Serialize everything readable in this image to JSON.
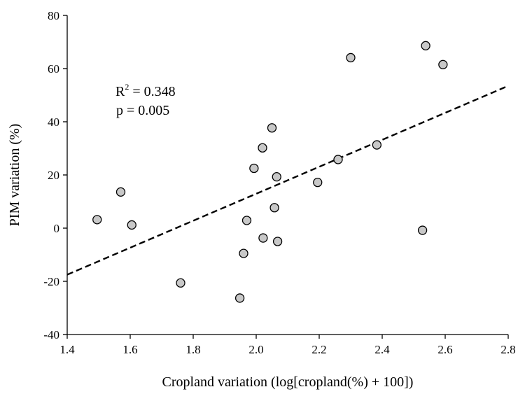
{
  "chart_data": {
    "type": "scatter",
    "title": "",
    "xlabel": "Cropland variation (log[cropland(%) + 100])",
    "ylabel": "PIM variation (%)",
    "xlim": [
      1.4,
      2.8
    ],
    "ylim": [
      -40,
      80
    ],
    "x_ticks": [
      1.4,
      1.6,
      1.8,
      2.0,
      2.2,
      2.4,
      2.6,
      2.8
    ],
    "x_tick_labels": [
      "1.4",
      "1.6",
      "1.8",
      "2.0",
      "2.2",
      "2.4",
      "2.6",
      "2.8"
    ],
    "y_ticks": [
      -40,
      -20,
      0,
      20,
      40,
      60,
      80
    ],
    "y_tick_labels": [
      "-40",
      "-20",
      "0",
      "20",
      "40",
      "60",
      "80"
    ],
    "grid": false,
    "points": [
      {
        "x": 1.495,
        "y": 3.2
      },
      {
        "x": 1.57,
        "y": 13.6
      },
      {
        "x": 1.605,
        "y": 1.2
      },
      {
        "x": 1.76,
        "y": -20.6
      },
      {
        "x": 1.948,
        "y": -26.3
      },
      {
        "x": 1.96,
        "y": -9.5
      },
      {
        "x": 1.97,
        "y": 2.9
      },
      {
        "x": 1.993,
        "y": 22.5
      },
      {
        "x": 2.02,
        "y": 30.2
      },
      {
        "x": 2.022,
        "y": -3.7
      },
      {
        "x": 2.05,
        "y": 37.7
      },
      {
        "x": 2.058,
        "y": 7.7
      },
      {
        "x": 2.065,
        "y": 19.3
      },
      {
        "x": 2.068,
        "y": -5.0
      },
      {
        "x": 2.195,
        "y": 17.2
      },
      {
        "x": 2.26,
        "y": 25.8
      },
      {
        "x": 2.3,
        "y": 64.1
      },
      {
        "x": 2.383,
        "y": 31.3
      },
      {
        "x": 2.528,
        "y": -0.8
      },
      {
        "x": 2.538,
        "y": 68.6
      },
      {
        "x": 2.593,
        "y": 61.5
      }
    ],
    "trendline": {
      "style": "dashed",
      "x": [
        1.4,
        2.8
      ],
      "y": [
        -17.5,
        53.5
      ]
    },
    "annotations": {
      "r2_prefix": "R",
      "r2_exponent": "2",
      "r2_value": " = 0.348",
      "p_text": "p = 0.005"
    }
  }
}
